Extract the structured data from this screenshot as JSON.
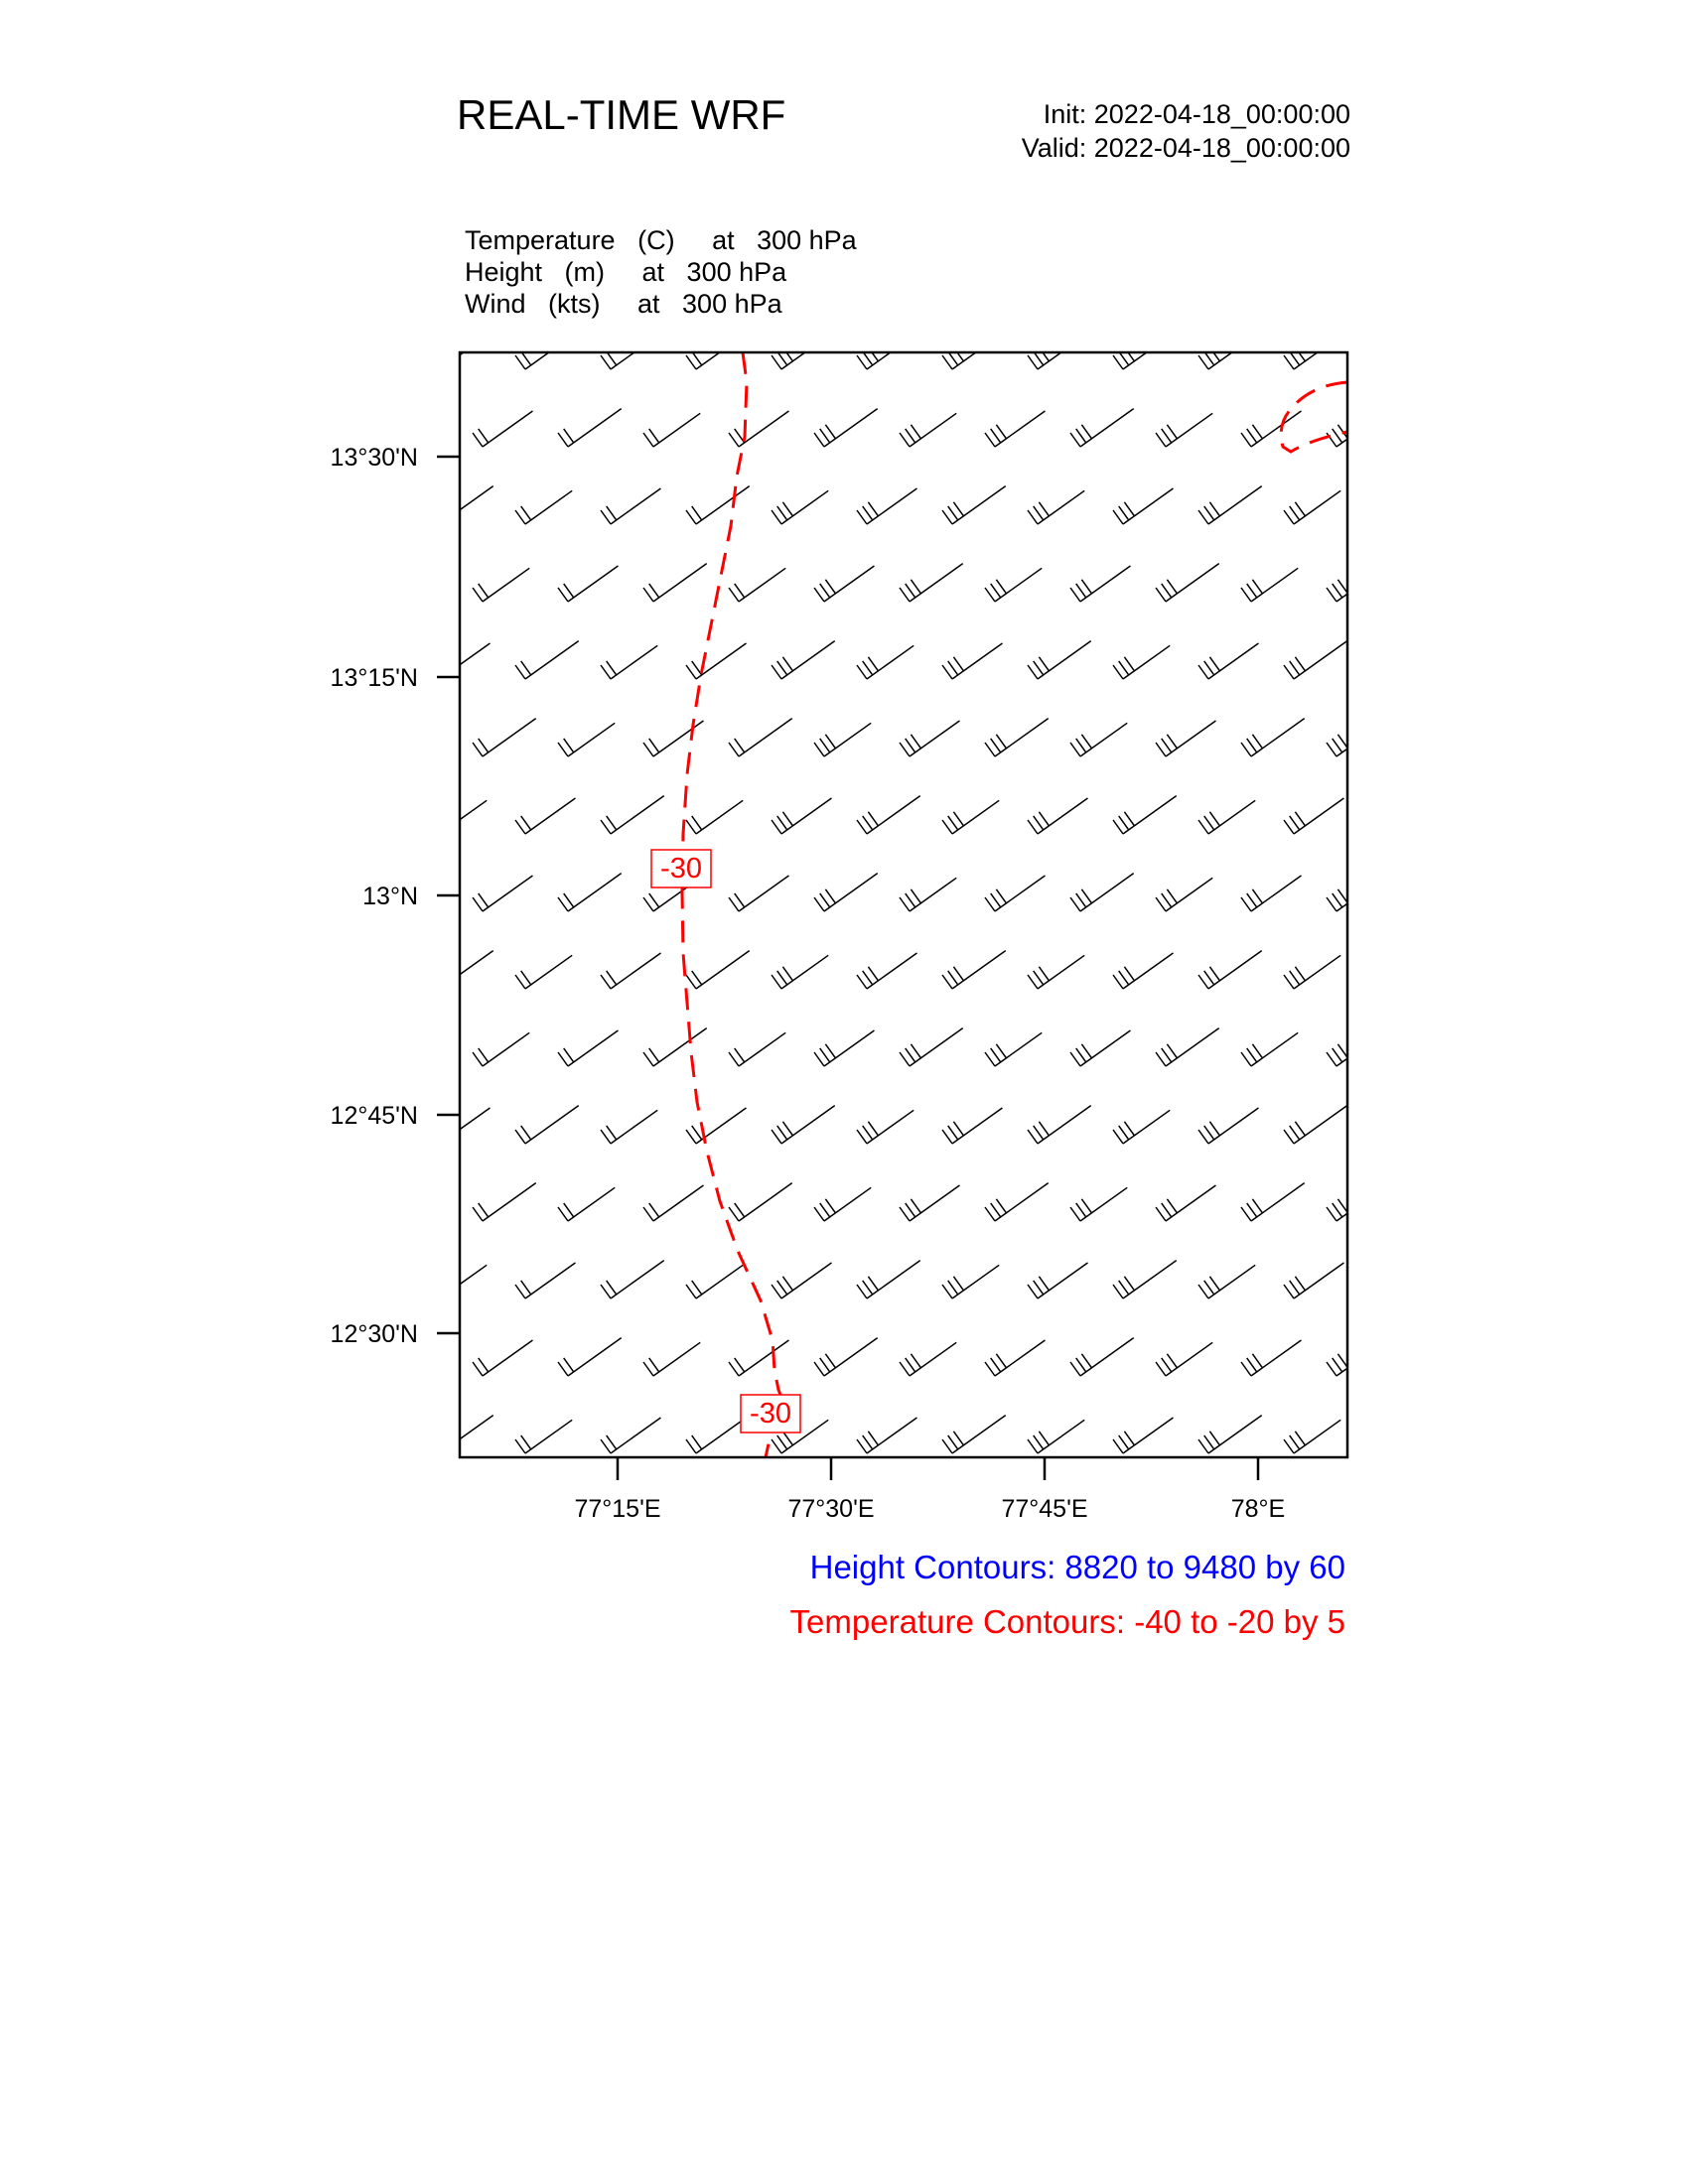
{
  "header": {
    "title": "REAL-TIME WRF",
    "init": "Init: 2022-04-18_00:00:00",
    "valid": "Valid: 2022-04-18_00:00:00"
  },
  "fields": [
    "Temperature   (C)     at   300 hPa",
    "Height   (m)     at   300 hPa",
    "Wind   (kts)     at   300 hPa"
  ],
  "map": {
    "lat_ticks": [
      "13°30'N",
      "13°15'N",
      "13°N",
      "12°45'N",
      "12°30'N"
    ],
    "lon_ticks": [
      "77°15'E",
      "77°30'E",
      "77°45'E",
      "78°E"
    ],
    "contour_labels": [
      "-30",
      "-30"
    ],
    "colors": {
      "temperature": "#ff0000",
      "height": "#0000ff",
      "barbs": "#000000"
    }
  },
  "footer": {
    "height_contours": "Height Contours: 8820 to 9480 by 60",
    "temperature_contours": "Temperature Contours: -40 to -20 by 5"
  }
}
